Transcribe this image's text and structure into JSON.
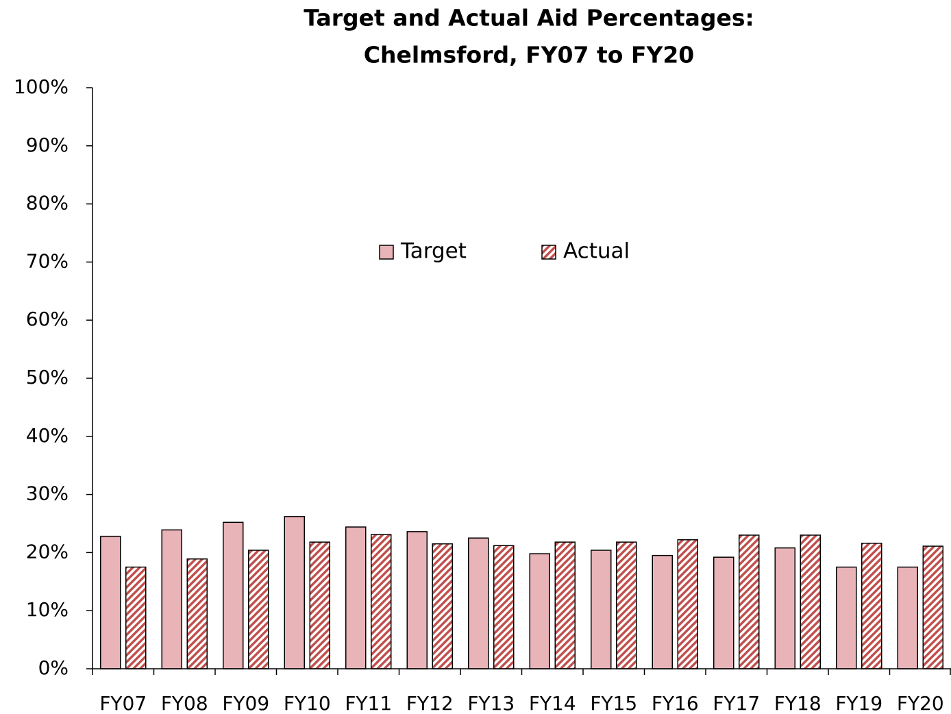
{
  "chart_data": {
    "type": "bar",
    "title": [
      "Target and Actual Aid Percentages:",
      "Chelmsford, FY07 to FY20"
    ],
    "categories": [
      "FY07",
      "FY08",
      "FY09",
      "FY10",
      "FY11",
      "FY12",
      "FY13",
      "FY14",
      "FY15",
      "FY16",
      "FY17",
      "FY18",
      "FY19",
      "FY20"
    ],
    "series": [
      {
        "name": "Target",
        "color": "#e8b4b8",
        "values": [
          22.8,
          23.9,
          25.2,
          26.2,
          24.4,
          23.6,
          22.5,
          19.8,
          20.4,
          19.5,
          19.2,
          20.8,
          17.5,
          17.5
        ]
      },
      {
        "name": "Actual",
        "color": "#c0504d",
        "hatch": true,
        "values": [
          17.5,
          18.9,
          20.4,
          21.8,
          23.1,
          21.5,
          21.2,
          21.8,
          21.8,
          22.2,
          23.0,
          23.0,
          21.6,
          21.1
        ]
      }
    ],
    "ylim": [
      0,
      100
    ],
    "yticks": [
      {
        "value": 0,
        "label": "0%"
      },
      {
        "value": 10,
        "label": "10%"
      },
      {
        "value": 20,
        "label": "20%"
      },
      {
        "value": 30,
        "label": "30%"
      },
      {
        "value": 40,
        "label": "40%"
      },
      {
        "value": 50,
        "label": "50%"
      },
      {
        "value": 60,
        "label": "60%"
      },
      {
        "value": 70,
        "label": "70%"
      },
      {
        "value": 80,
        "label": "80%"
      },
      {
        "value": 90,
        "label": "90%"
      },
      {
        "value": 100,
        "label": "100%"
      }
    ],
    "grid": false,
    "legend": "center"
  }
}
